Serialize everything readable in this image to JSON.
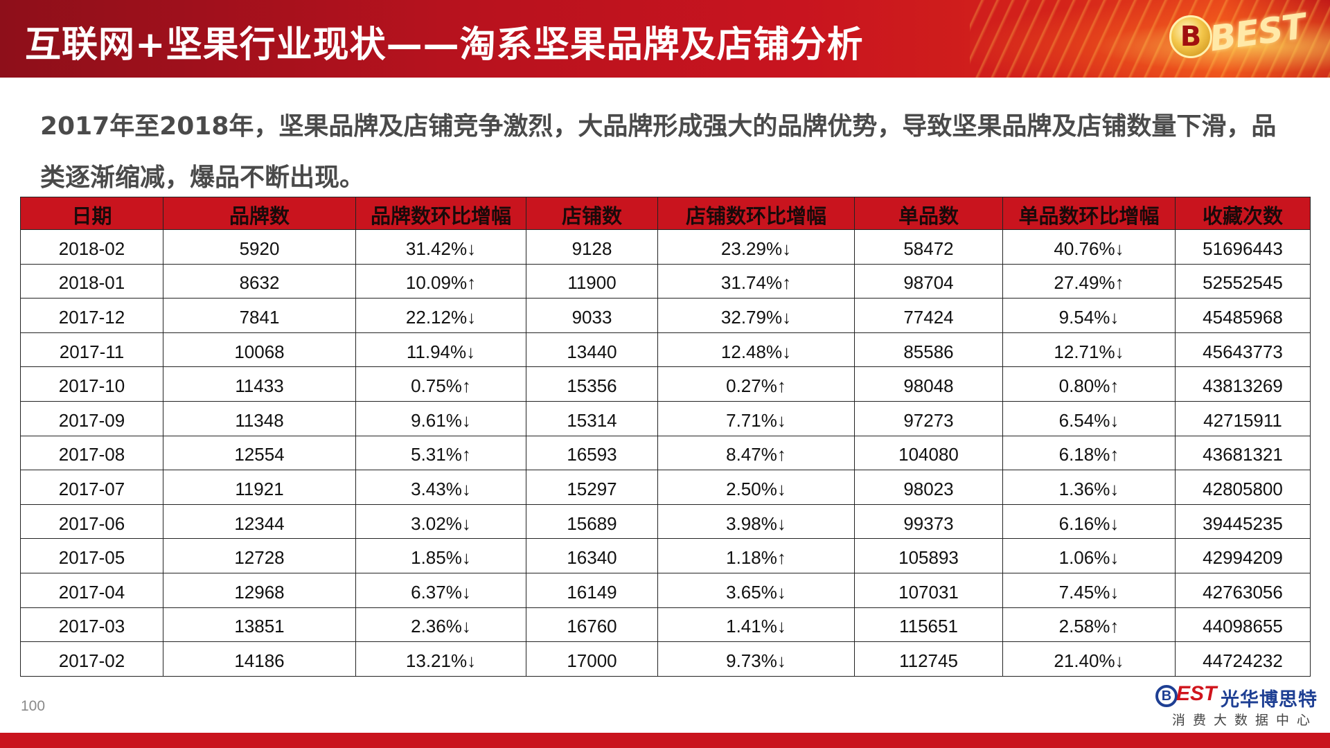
{
  "header": {
    "title": "互联网+坚果行业现状——淘系坚果品牌及店铺分析",
    "logo_text": "BEST"
  },
  "intro": {
    "text": "2017年至2018年，坚果品牌及店铺竞争激烈，大品牌形成强大的品牌优势，导致坚果品牌及店铺数量下滑，品类逐渐缩减，爆品不断出现。"
  },
  "table": {
    "columns": [
      "日期",
      "品牌数",
      "品牌数环比增幅",
      "店铺数",
      "店铺数环比增幅",
      "单品数",
      "单品数环比增幅",
      "收藏次数"
    ],
    "rows": [
      [
        "2018-02",
        "5920",
        "31.42%↓",
        "9128",
        "23.29%↓",
        "58472",
        "40.76%↓",
        "51696443"
      ],
      [
        "2018-01",
        "8632",
        "10.09%↑",
        "11900",
        "31.74%↑",
        "98704",
        "27.49%↑",
        "52552545"
      ],
      [
        "2017-12",
        "7841",
        "22.12%↓",
        "9033",
        "32.79%↓",
        "77424",
        "9.54%↓",
        "45485968"
      ],
      [
        "2017-11",
        "10068",
        "11.94%↓",
        "13440",
        "12.48%↓",
        "85586",
        "12.71%↓",
        "45643773"
      ],
      [
        "2017-10",
        "11433",
        "0.75%↑",
        "15356",
        "0.27%↑",
        "98048",
        "0.80%↑",
        "43813269"
      ],
      [
        "2017-09",
        "11348",
        "9.61%↓",
        "15314",
        "7.71%↓",
        "97273",
        "6.54%↓",
        "42715911"
      ],
      [
        "2017-08",
        "12554",
        "5.31%↑",
        "16593",
        "8.47%↑",
        "104080",
        "6.18%↑",
        "43681321"
      ],
      [
        "2017-07",
        "11921",
        "3.43%↓",
        "15297",
        "2.50%↓",
        "98023",
        "1.36%↓",
        "42805800"
      ],
      [
        "2017-06",
        "12344",
        "3.02%↓",
        "15689",
        "3.98%↓",
        "99373",
        "6.16%↓",
        "39445235"
      ],
      [
        "2017-05",
        "12728",
        "1.85%↓",
        "16340",
        "1.18%↑",
        "105893",
        "1.06%↓",
        "42994209"
      ],
      [
        "2017-04",
        "12968",
        "6.37%↓",
        "16149",
        "3.65%↓",
        "107031",
        "7.45%↓",
        "42763056"
      ],
      [
        "2017-03",
        "13851",
        "2.36%↓",
        "16760",
        "1.41%↓",
        "115651",
        "2.58%↑",
        "44098655"
      ],
      [
        "2017-02",
        "14186",
        "13.21%↓",
        "17000",
        "9.73%↓",
        "112745",
        "21.40%↓",
        "44724232"
      ]
    ]
  },
  "footer": {
    "page_number": "100",
    "brand_mark": "B",
    "brand_est": "EST",
    "brand_name": "光华博思特",
    "brand_sub": "消费大数据中心"
  },
  "colors": {
    "header_red": "#c9141e",
    "table_header_red": "#c9141e",
    "brand_blue": "#1e3f93"
  }
}
